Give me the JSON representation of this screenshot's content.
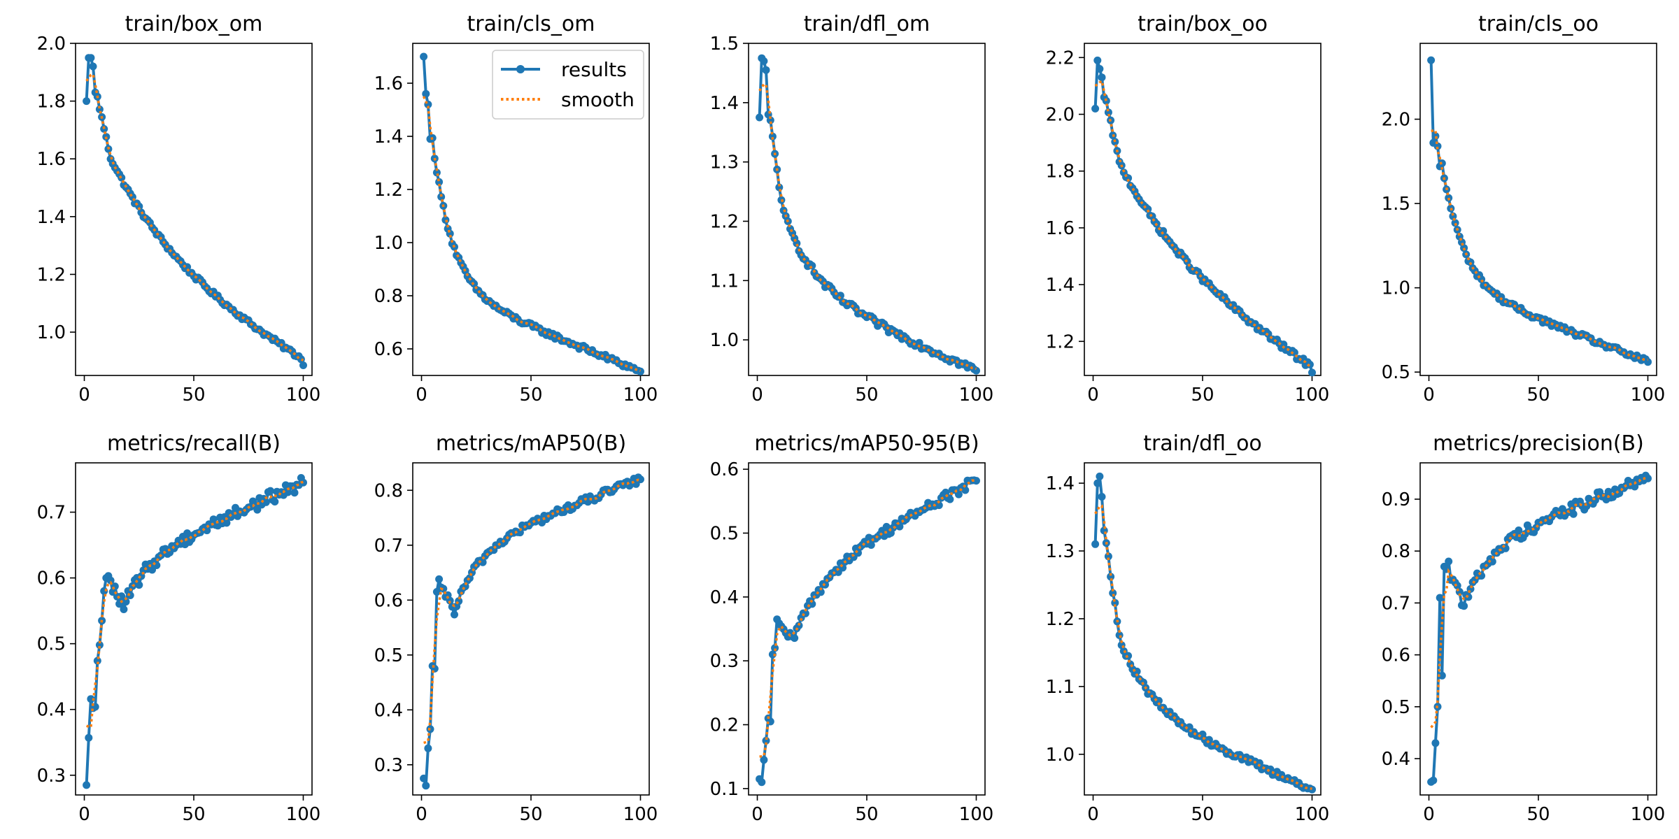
{
  "colors": {
    "results": "#1f77b4",
    "smooth": "#ff7f0e"
  },
  "legend": {
    "entries": [
      "results",
      "smooth"
    ],
    "placement": "upper-right",
    "panel_index": 1
  },
  "chart_data": [
    {
      "type": "line",
      "title": "train/box_om",
      "xlim": [
        -4,
        104
      ],
      "ylim": [
        0.85,
        2.0
      ],
      "xticks": [
        0,
        50,
        100
      ],
      "xtick_labels": [
        "0",
        "50",
        "100"
      ],
      "yticks": [
        1.0,
        1.2,
        1.4,
        1.6,
        1.8,
        2.0
      ],
      "ytick_labels": [
        "1.0",
        "1.2",
        "1.4",
        "1.6",
        "1.8",
        "2.0"
      ],
      "curve": {
        "start": 1.8,
        "end": 0.885,
        "early": [
          1.8,
          1.95,
          1.95,
          1.92,
          1.83
        ],
        "k": 3.2,
        "w": 0.55,
        "noise": 0.008,
        "smooth_start": 1.87
      }
    },
    {
      "type": "line",
      "title": "train/cls_om",
      "xlim": [
        -4,
        104
      ],
      "ylim": [
        0.5,
        1.75
      ],
      "xticks": [
        0,
        50,
        100
      ],
      "xtick_labels": [
        "0",
        "50",
        "100"
      ],
      "yticks": [
        0.6,
        0.8,
        1.0,
        1.2,
        1.4,
        1.6
      ],
      "ytick_labels": [
        "0.6",
        "0.8",
        "1.0",
        "1.2",
        "1.4",
        "1.6"
      ],
      "curve": {
        "start": 1.7,
        "end": 0.515,
        "early": [
          1.7,
          1.56,
          1.52,
          1.39
        ],
        "k": 11.0,
        "w": 0.72,
        "noise": 0.01,
        "smooth_start": 1.55
      }
    },
    {
      "type": "line",
      "title": "train/dfl_om",
      "xlim": [
        -4,
        104
      ],
      "ylim": [
        0.94,
        1.5
      ],
      "xticks": [
        0,
        50,
        100
      ],
      "xtick_labels": [
        "0",
        "50",
        "100"
      ],
      "yticks": [
        1.0,
        1.1,
        1.2,
        1.3,
        1.4,
        1.5
      ],
      "ytick_labels": [
        "1.0",
        "1.1",
        "1.2",
        "1.3",
        "1.4",
        "1.5"
      ],
      "curve": {
        "start": 1.375,
        "end": 0.948,
        "early": [
          1.375,
          1.475,
          1.47,
          1.455,
          1.38
        ],
        "k": 7.0,
        "w": 0.62,
        "noise": 0.006,
        "smooth_start": 1.42
      }
    },
    {
      "type": "line",
      "title": "train/box_oo",
      "xlim": [
        -4,
        104
      ],
      "ylim": [
        1.08,
        2.25
      ],
      "xticks": [
        0,
        50,
        100
      ],
      "xtick_labels": [
        "0",
        "50",
        "100"
      ],
      "yticks": [
        1.2,
        1.4,
        1.6,
        1.8,
        2.0,
        2.2
      ],
      "ytick_labels": [
        "1.2",
        "1.4",
        "1.6",
        "1.8",
        "2.0",
        "2.2"
      ],
      "curve": {
        "start": 2.02,
        "end": 1.09,
        "early": [
          2.02,
          2.19,
          2.16,
          2.13,
          2.06
        ],
        "k": 3.2,
        "w": 0.5,
        "noise": 0.01,
        "smooth_start": 2.1
      }
    },
    {
      "type": "line",
      "title": "train/cls_oo",
      "xlim": [
        -4,
        104
      ],
      "ylim": [
        0.48,
        2.45
      ],
      "xticks": [
        0,
        50,
        100
      ],
      "xtick_labels": [
        "0",
        "50",
        "100"
      ],
      "yticks": [
        0.5,
        1.0,
        1.5,
        2.0
      ],
      "ytick_labels": [
        "0.5",
        "1.0",
        "1.5",
        "2.0"
      ],
      "curve": {
        "start": 2.35,
        "end": 0.56,
        "early": [
          2.35,
          1.86,
          1.9,
          1.84,
          1.72
        ],
        "k": 11.0,
        "w": 0.72,
        "noise": 0.015,
        "smooth_start": 1.93
      }
    },
    {
      "type": "line",
      "title": "metrics/recall(B)",
      "xlim": [
        -4,
        104
      ],
      "ylim": [
        0.27,
        0.775
      ],
      "xticks": [
        0,
        50,
        100
      ],
      "xtick_labels": [
        "0",
        "50",
        "100"
      ],
      "yticks": [
        0.3,
        0.4,
        0.5,
        0.6,
        0.7
      ],
      "ytick_labels": [
        "0.3",
        "0.4",
        "0.5",
        "0.6",
        "0.7"
      ],
      "curve": {
        "start": 0.285,
        "end": 0.745,
        "early": [
          0.285,
          0.357,
          0.416,
          0.402,
          0.404,
          0.474,
          0.498,
          0.535,
          0.58,
          0.6,
          0.603
        ],
        "k": 9.0,
        "w": 0.68,
        "noise": 0.01,
        "smooth_start": 0.375
      }
    },
    {
      "type": "line",
      "title": "metrics/mAP50(B)",
      "xlim": [
        -4,
        104
      ],
      "ylim": [
        0.245,
        0.85
      ],
      "xticks": [
        0,
        50,
        100
      ],
      "xtick_labels": [
        "0",
        "50",
        "100"
      ],
      "yticks": [
        0.3,
        0.4,
        0.5,
        0.6,
        0.7,
        0.8
      ],
      "ytick_labels": [
        "0.3",
        "0.4",
        "0.5",
        "0.6",
        "0.7",
        "0.8"
      ],
      "curve": {
        "start": 0.275,
        "end": 0.82,
        "early": [
          0.275,
          0.262,
          0.33,
          0.365,
          0.48,
          0.475,
          0.615,
          0.638
        ],
        "k": 9.0,
        "w": 0.72,
        "noise": 0.007,
        "smooth_start": 0.34
      }
    },
    {
      "type": "line",
      "title": "metrics/mAP50-95(B)",
      "xlim": [
        -4,
        104
      ],
      "ylim": [
        0.09,
        0.61
      ],
      "xticks": [
        0,
        50,
        100
      ],
      "xtick_labels": [
        "0",
        "50",
        "100"
      ],
      "yticks": [
        0.1,
        0.2,
        0.3,
        0.4,
        0.5,
        0.6
      ],
      "ytick_labels": [
        "0.1",
        "0.2",
        "0.3",
        "0.4",
        "0.5",
        "0.6"
      ],
      "curve": {
        "start": 0.115,
        "end": 0.582,
        "early": [
          0.115,
          0.11,
          0.145,
          0.175,
          0.21,
          0.205,
          0.31,
          0.32,
          0.365
        ],
        "k": 7.0,
        "w": 0.62,
        "noise": 0.008,
        "smooth_start": 0.15
      }
    },
    {
      "type": "line",
      "title": "train/dfl_oo",
      "xlim": [
        -4,
        104
      ],
      "ylim": [
        0.94,
        1.43
      ],
      "xticks": [
        0,
        50,
        100
      ],
      "xtick_labels": [
        "0",
        "50",
        "100"
      ],
      "yticks": [
        1.0,
        1.1,
        1.2,
        1.3,
        1.4
      ],
      "ytick_labels": [
        "1.0",
        "1.1",
        "1.2",
        "1.3",
        "1.4"
      ],
      "curve": {
        "start": 1.31,
        "end": 0.948,
        "early": [
          1.31,
          1.4,
          1.41,
          1.38,
          1.33
        ],
        "k": 7.0,
        "w": 0.62,
        "noise": 0.005,
        "smooth_start": 1.355
      }
    },
    {
      "type": "line",
      "title": "metrics/precision(B)",
      "xlim": [
        -4,
        104
      ],
      "ylim": [
        0.33,
        0.97
      ],
      "xticks": [
        0,
        50,
        100
      ],
      "xtick_labels": [
        "0",
        "50",
        "100"
      ],
      "yticks": [
        0.4,
        0.5,
        0.6,
        0.7,
        0.8,
        0.9
      ],
      "ytick_labels": [
        "0.4",
        "0.5",
        "0.6",
        "0.7",
        "0.8",
        "0.9"
      ],
      "curve": {
        "start": 0.355,
        "end": 0.94,
        "early": [
          0.355,
          0.358,
          0.43,
          0.5,
          0.71,
          0.56,
          0.77,
          0.765,
          0.78
        ],
        "k": 9.0,
        "w": 0.72,
        "noise": 0.012,
        "smooth_start": 0.46
      }
    }
  ]
}
